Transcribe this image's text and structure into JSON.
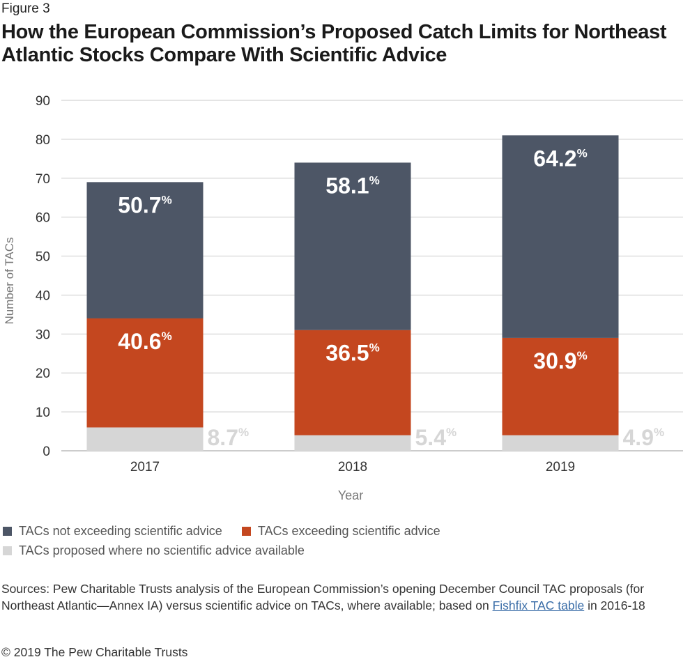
{
  "figure_label": "Figure 3",
  "title": "How the European Commission’s Proposed Catch Limits for Northeast Atlantic Stocks Compare With Scientific Advice",
  "chart_data": {
    "type": "bar",
    "stacked": true,
    "categories": [
      "2017",
      "2018",
      "2019"
    ],
    "xlabel": "Year",
    "ylabel": "Number of TACs",
    "ylim": [
      0,
      90
    ],
    "yticks": [
      0,
      10,
      20,
      30,
      40,
      50,
      60,
      70,
      80,
      90
    ],
    "grid": true,
    "series": [
      {
        "name": "TACs proposed where no scientific advice available",
        "color": "#d6d6d6",
        "values": [
          6,
          4,
          4
        ],
        "labels": [
          "8.7%",
          "5.4%",
          "4.9%"
        ]
      },
      {
        "name": "TACs exceeding scientific advice",
        "color": "#c4471f",
        "values": [
          28,
          27,
          25
        ],
        "labels": [
          "40.6%",
          "36.5%",
          "30.9%"
        ]
      },
      {
        "name": "TACs not exceeding scientific advice",
        "color": "#4d5666",
        "values": [
          35,
          43,
          52
        ],
        "labels": [
          "50.7%",
          "58.1%",
          "64.2%"
        ]
      }
    ]
  },
  "legend": {
    "row1": [
      {
        "label": "TACs not exceeding scientific advice",
        "color": "#4d5666"
      },
      {
        "label": "TACs exceeding scientific advice",
        "color": "#c4471f"
      }
    ],
    "row2": [
      {
        "label": "TACs proposed where no scientific advice available",
        "color": "#d6d6d6"
      }
    ]
  },
  "sources": {
    "text": "Sources: Pew Charitable Trusts analysis of the European Commission’s opening December Council TAC proposals (for Northeast Atlantic—Annex IA) versus scientific advice on TACs, where available; based on ",
    "link": "Fishfix TAC table",
    "tail": " in 2016-18"
  },
  "copyright": "© 2019 The Pew Charitable Trusts"
}
